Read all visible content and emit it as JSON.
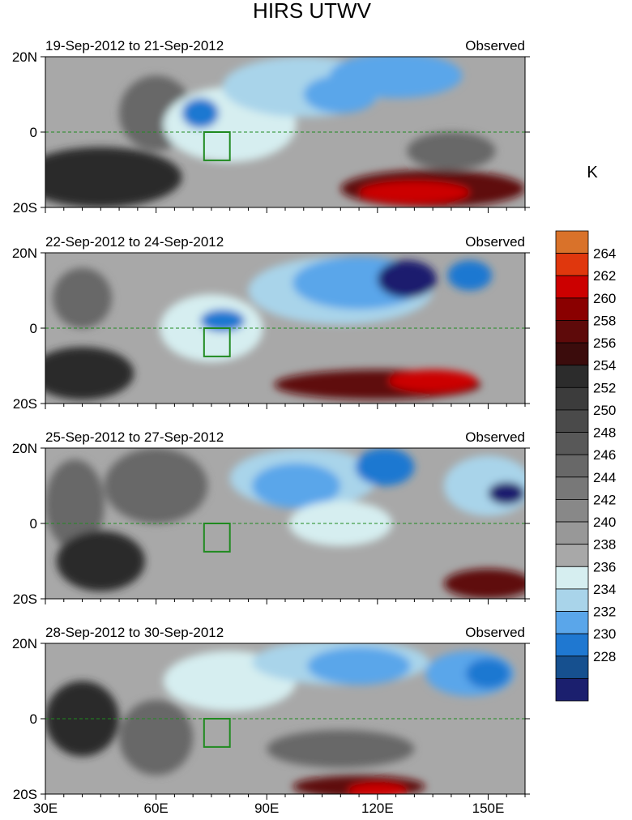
{
  "chart_data": {
    "type": "heatmap",
    "title": "HIRS UTWV",
    "colorbar": {
      "unit": "K",
      "levels": [
        228,
        230,
        232,
        234,
        236,
        238,
        240,
        242,
        244,
        246,
        248,
        250,
        252,
        254,
        256,
        258,
        260,
        262,
        264
      ],
      "colors": [
        "#1b1f6e",
        "#16508f",
        "#1f78d1",
        "#5aa6ea",
        "#a9d4ea",
        "#d6eef0",
        "#a8a8a8",
        "#989898",
        "#888888",
        "#787878",
        "#686868",
        "#585858",
        "#4a4a4a",
        "#3c3c3c",
        "#2c2c2c",
        "#3b0c0c",
        "#5e0a0a",
        "#8a0000",
        "#cc0000",
        "#e0370d",
        "#d9722a"
      ]
    },
    "x_axis": {
      "range": [
        30,
        160
      ],
      "ticks": [
        30,
        60,
        90,
        120,
        150
      ],
      "tick_labels": [
        "30E",
        "60E",
        "90E",
        "120E",
        "150E"
      ]
    },
    "y_axis": {
      "range": [
        -20,
        20
      ],
      "ticks": [
        -20,
        0,
        20
      ],
      "tick_labels": [
        "20S",
        "0",
        "20N"
      ]
    },
    "coastline_color": "#1f8a1f",
    "box_region": {
      "lon": [
        73,
        80
      ],
      "lat": [
        -7.5,
        0
      ]
    },
    "panels": [
      {
        "period": "19-Sep-2012 to 21-Sep-2012",
        "label": "Observed"
      },
      {
        "period": "22-Sep-2012 to 24-Sep-2012",
        "label": "Observed"
      },
      {
        "period": "25-Sep-2012 to 27-Sep-2012",
        "label": "Observed"
      },
      {
        "period": "28-Sep-2012 to 30-Sep-2012",
        "label": "Observed"
      }
    ]
  }
}
